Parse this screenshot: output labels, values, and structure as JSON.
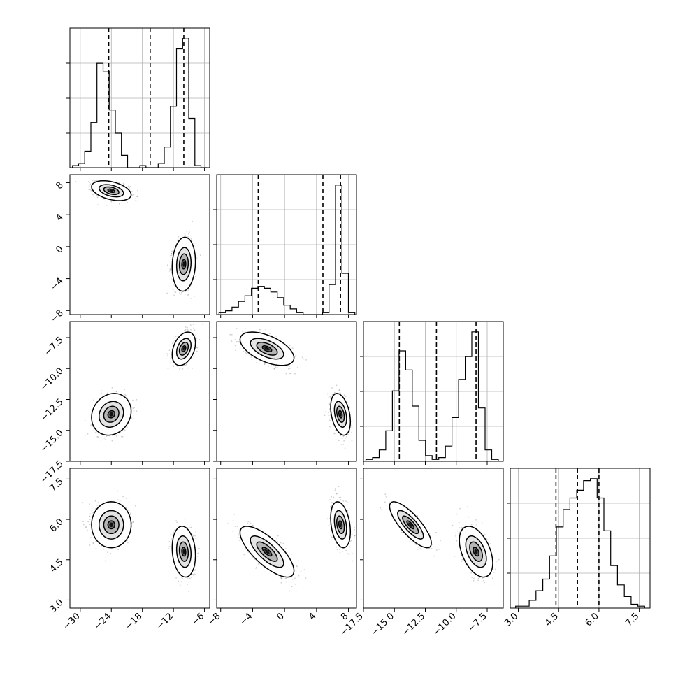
{
  "chart_data": {
    "type": "scatter",
    "parameters": [
      {
        "range": [
          -32,
          -5
        ],
        "ticks": [
          -30,
          -24,
          -18,
          -12,
          -6
        ],
        "tick_labels": [
          "−30",
          "−24",
          "−18",
          "−12",
          "−6"
        ],
        "quantiles": [
          -24.5,
          -16.5,
          -10.0
        ],
        "histogram": [
          1,
          2,
          8,
          22,
          51,
          47,
          28,
          17,
          6,
          0,
          0,
          1,
          0,
          0,
          2,
          10,
          30,
          58,
          63,
          24,
          1,
          0
        ],
        "hist_range": [
          -31.5,
          -5.5
        ]
      },
      {
        "range": [
          -8.5,
          9
        ],
        "ticks": [
          -8,
          -4,
          0,
          4,
          8
        ],
        "tick_labels": [
          "−8",
          "−4",
          "0",
          "4",
          "8"
        ],
        "quantiles": [
          -3.3,
          4.8,
          7.0
        ],
        "histogram": [
          1,
          2,
          4,
          7,
          10,
          14,
          15,
          14,
          12,
          9,
          5,
          3,
          1,
          0,
          0,
          0,
          1,
          16,
          69,
          22,
          1
        ],
        "hist_range": [
          -8.2,
          8.8
        ]
      },
      {
        "range": [
          -17.5,
          -6.2
        ],
        "ticks": [
          -17.5,
          -15.0,
          -12.5,
          -10.0,
          -7.5
        ],
        "tick_labels": [
          "−17.5",
          "−15.0",
          "−12.5",
          "−10.0",
          "−7.5"
        ],
        "quantiles": [
          -14.6,
          -11.6,
          -8.4
        ],
        "histogram": [
          1,
          2,
          6,
          16,
          37,
          58,
          48,
          29,
          11,
          3,
          1,
          2,
          8,
          23,
          43,
          55,
          68,
          28,
          6,
          1
        ],
        "hist_range": [
          -17.3,
          -6.6
        ]
      },
      {
        "range": [
          2.7,
          7.9
        ],
        "ticks": [
          3.0,
          4.5,
          6.0,
          7.5
        ],
        "tick_labels": [
          "3.0",
          "4.5",
          "6.0",
          "7.5"
        ],
        "quantiles": [
          4.4,
          5.2,
          6.0
        ],
        "histogram": [
          1,
          1,
          4,
          9,
          15,
          27,
          42,
          51,
          57,
          61,
          66,
          67,
          57,
          40,
          22,
          12,
          6,
          2,
          1
        ],
        "hist_range": [
          2.9,
          7.7
        ]
      }
    ],
    "modes": [
      {
        "weight": 0.45,
        "mean": [
          -24.0,
          7.0,
          -13.7,
          5.8
        ],
        "sd": [
          1.7,
          0.55,
          0.75,
          0.38
        ]
      },
      {
        "weight": 0.55,
        "mean": [
          -10.0,
          -2.2,
          -8.4,
          4.8
        ],
        "sd": [
          1.0,
          1.5,
          0.6,
          0.42
        ]
      }
    ],
    "mode_correlations": [
      [
        [
          1,
          -0.4,
          0.15,
          0.0
        ],
        [
          -0.4,
          1,
          -0.35,
          -0.3
        ],
        [
          0.15,
          -0.35,
          1,
          -0.8
        ],
        [
          0.0,
          -0.3,
          -0.8,
          1
        ]
      ],
      [
        [
          1,
          0.1,
          0.35,
          -0.15
        ],
        [
          0.1,
          1,
          -0.55,
          -0.75
        ],
        [
          0.35,
          -0.55,
          1,
          -0.45
        ],
        [
          -0.15,
          -0.75,
          -0.45,
          1
        ]
      ]
    ],
    "contour_levels": [
      0.39,
      0.86,
      1.39
    ],
    "grid": true
  }
}
